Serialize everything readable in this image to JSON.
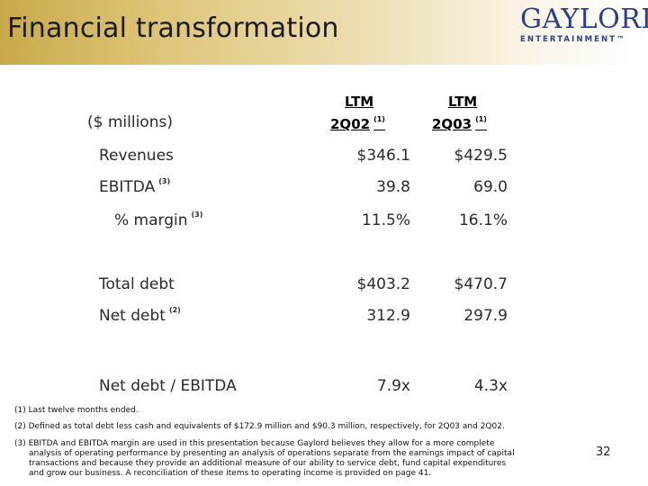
{
  "header": {
    "title": "Financial transformation",
    "logo_main": "GAYLORD",
    "logo_sub": "ENTERTAINMENT™",
    "brand_color": "#2b3f8a"
  },
  "table": {
    "units_label": "($ millions)",
    "columns": [
      {
        "line1": "LTM",
        "line2": "2Q02",
        "note": "(1)"
      },
      {
        "line1": "LTM",
        "line2": "2Q03",
        "note": "(1)"
      }
    ],
    "rows": [
      {
        "label": "Revenues",
        "note": "",
        "values": [
          "$346.1",
          "$429.5"
        ]
      },
      {
        "label": "EBITDA",
        "note": "(3)",
        "values": [
          "39.8",
          "69.0"
        ]
      },
      {
        "label": "% margin",
        "note": "(3)",
        "values": [
          "11.5%",
          "16.1%"
        ]
      },
      {
        "label": "Total debt",
        "note": "",
        "values": [
          "$403.2",
          "$470.7"
        ]
      },
      {
        "label": "Net debt",
        "note": "(2)",
        "values": [
          "312.9",
          "297.9"
        ]
      },
      {
        "label": "Net debt / EBITDA",
        "note": "",
        "values": [
          "7.9x",
          "4.3x"
        ]
      }
    ]
  },
  "footnotes": {
    "fn1": "(1) Last twelve months ended.",
    "fn2": "(2) Defined as total debt less cash and equivalents of $172.9 million and $90.3 million, respectively, for 2Q03 and 2Q02.",
    "fn3_line1": "(3) EBITDA and EBITDA margin are used in this presentation because Gaylord believes they allow for a more complete",
    "fn3_line2": "analysis of operating performance by presenting an analysis of operations separate from the earnings impact of capital",
    "fn3_line3": "transactions and because they provide an additional measure of our ability to service debt, fund capital expenditures",
    "fn3_line4": "and grow our business. A reconciliation of these items to operating income is provided on page 41."
  },
  "page_number": "32"
}
